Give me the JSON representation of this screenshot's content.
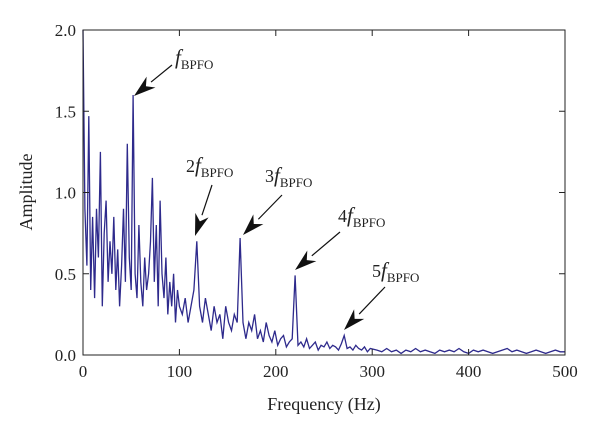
{
  "chart_data": {
    "type": "line",
    "x": [
      0,
      2,
      4,
      6,
      8,
      10,
      12,
      14,
      16,
      18,
      20,
      22,
      24,
      26,
      28,
      30,
      32,
      34,
      36,
      38,
      40,
      42,
      44,
      46,
      48,
      50,
      52,
      54,
      56,
      58,
      60,
      62,
      64,
      66,
      68,
      70,
      72,
      74,
      76,
      78,
      80,
      82,
      84,
      86,
      88,
      90,
      92,
      94,
      96,
      98,
      100,
      103,
      106,
      109,
      112,
      115,
      118,
      121,
      124,
      127,
      130,
      133,
      136,
      139,
      142,
      145,
      148,
      151,
      154,
      157,
      160,
      163,
      166,
      169,
      172,
      175,
      178,
      181,
      184,
      187,
      190,
      193,
      196,
      199,
      202,
      205,
      208,
      211,
      214,
      217,
      220,
      223,
      226,
      229,
      232,
      235,
      238,
      241,
      244,
      247,
      250,
      253,
      256,
      259,
      262,
      265,
      268,
      271,
      274,
      277,
      280,
      283,
      286,
      289,
      292,
      295,
      298,
      305,
      310,
      315,
      320,
      325,
      330,
      335,
      340,
      345,
      350,
      355,
      360,
      365,
      370,
      375,
      380,
      385,
      390,
      395,
      400,
      405,
      410,
      415,
      420,
      425,
      430,
      435,
      440,
      445,
      450,
      455,
      460,
      465,
      470,
      475,
      480,
      485,
      490,
      495,
      500
    ],
    "series": [
      {
        "color": "#2e2a8c",
        "values": [
          2.0,
          0.9,
          0.55,
          1.47,
          0.4,
          0.85,
          0.35,
          0.9,
          0.6,
          1.25,
          0.3,
          0.75,
          0.95,
          0.45,
          0.7,
          0.5,
          0.85,
          0.4,
          0.65,
          0.3,
          0.55,
          0.9,
          0.45,
          1.3,
          0.6,
          0.4,
          1.6,
          0.5,
          0.35,
          0.8,
          0.45,
          0.3,
          0.6,
          0.4,
          0.5,
          0.7,
          1.09,
          0.45,
          0.8,
          0.3,
          0.95,
          0.5,
          0.35,
          0.6,
          0.25,
          0.45,
          0.3,
          0.5,
          0.2,
          0.4,
          0.3,
          0.25,
          0.35,
          0.2,
          0.3,
          0.4,
          0.7,
          0.3,
          0.2,
          0.35,
          0.25,
          0.15,
          0.3,
          0.2,
          0.25,
          0.1,
          0.3,
          0.2,
          0.15,
          0.25,
          0.2,
          0.72,
          0.2,
          0.1,
          0.2,
          0.15,
          0.25,
          0.1,
          0.15,
          0.08,
          0.2,
          0.12,
          0.08,
          0.15,
          0.06,
          0.1,
          0.12,
          0.05,
          0.08,
          0.1,
          0.49,
          0.06,
          0.08,
          0.05,
          0.1,
          0.04,
          0.06,
          0.08,
          0.03,
          0.06,
          0.05,
          0.08,
          0.04,
          0.06,
          0.05,
          0.03,
          0.07,
          0.12,
          0.04,
          0.05,
          0.03,
          0.06,
          0.04,
          0.03,
          0.05,
          0.02,
          0.04,
          0.03,
          0.02,
          0.04,
          0.02,
          0.03,
          0.01,
          0.03,
          0.02,
          0.04,
          0.02,
          0.03,
          0.02,
          0.01,
          0.03,
          0.02,
          0.03,
          0.02,
          0.04,
          0.02,
          0.01,
          0.03,
          0.02,
          0.03,
          0.02,
          0.01,
          0.02,
          0.03,
          0.04,
          0.02,
          0.03,
          0.02,
          0.01,
          0.02,
          0.03,
          0.02,
          0.01,
          0.02,
          0.03,
          0.02,
          0.02
        ]
      }
    ],
    "xlim": [
      0,
      500
    ],
    "ylim": [
      0,
      2
    ],
    "xticks": [
      0,
      100,
      200,
      300,
      400,
      500
    ],
    "yticks": [
      {
        "value": 0,
        "label": "0.0"
      },
      {
        "value": 0.5,
        "label": "0.5"
      },
      {
        "value": 1,
        "label": "1.0"
      },
      {
        "value": 1.5,
        "label": "1.5"
      },
      {
        "value": 2,
        "label": "2.0"
      }
    ],
    "xlabel": "Frequency (Hz)",
    "ylabel": "Amplitude",
    "annotations": [
      {
        "symbol": "f",
        "subscript": "BPFO"
      },
      {
        "prefix": "2",
        "symbol": "f",
        "subscript": "BPFO"
      },
      {
        "prefix": "3",
        "symbol": "f",
        "subscript": "BPFO"
      },
      {
        "prefix": "4",
        "symbol": "f",
        "subscript": "BPFO"
      },
      {
        "prefix": "5",
        "symbol": "f",
        "subscript": "BPFO"
      }
    ]
  }
}
